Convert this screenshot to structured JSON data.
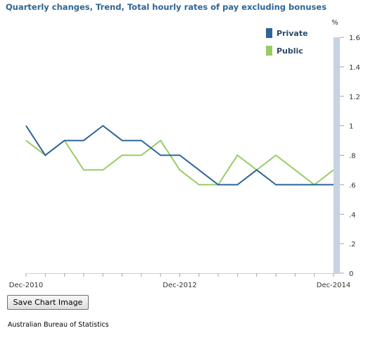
{
  "chart_data": {
    "type": "line",
    "title": "Quarterly changes, Trend, Total hourly rates of pay excluding bonuses",
    "xlabel": "",
    "ylabel": "%",
    "x": [
      "Dec-2010",
      "Mar-2011",
      "Jun-2011",
      "Sep-2011",
      "Dec-2011",
      "Mar-2012",
      "Jun-2012",
      "Sep-2012",
      "Dec-2012",
      "Mar-2013",
      "Jun-2013",
      "Sep-2013",
      "Dec-2013",
      "Mar-2014",
      "Jun-2014",
      "Sep-2014",
      "Dec-2014"
    ],
    "xticks": [
      {
        "index": 0,
        "label": "Dec-2010"
      },
      {
        "index": 8,
        "label": "Dec-2012"
      },
      {
        "index": 16,
        "label": "Dec-2014"
      }
    ],
    "ylim": [
      0,
      1.6
    ],
    "yticks": [
      {
        "value": 0,
        "label": "0"
      },
      {
        "value": 0.2,
        "label": ".2"
      },
      {
        "value": 0.4,
        "label": ".4"
      },
      {
        "value": 0.6,
        "label": ".6"
      },
      {
        "value": 0.8,
        "label": ".8"
      },
      {
        "value": 1.0,
        "label": "1"
      },
      {
        "value": 1.2,
        "label": "1.2"
      },
      {
        "value": 1.4,
        "label": "1.4"
      },
      {
        "value": 1.6,
        "label": "1.6"
      }
    ],
    "series": [
      {
        "name": "Private",
        "color": "#2e6596",
        "values": [
          1.0,
          0.8,
          0.9,
          0.9,
          1.0,
          0.9,
          0.9,
          0.8,
          0.8,
          0.7,
          0.6,
          0.6,
          0.7,
          0.6,
          0.6,
          0.6,
          0.6
        ]
      },
      {
        "name": "Public",
        "color": "#99cc66",
        "values": [
          0.9,
          0.8,
          0.9,
          0.7,
          0.7,
          0.8,
          0.8,
          0.9,
          0.7,
          0.6,
          0.6,
          0.8,
          0.7,
          0.8,
          0.7,
          0.6,
          0.7
        ]
      }
    ],
    "legend_position": "top-right",
    "grid": false,
    "axis_bar_color": "#c5d3e2"
  },
  "controls": {
    "save_label": "Save Chart Image"
  },
  "footer": {
    "source": "Australian Bureau of Statistics"
  }
}
